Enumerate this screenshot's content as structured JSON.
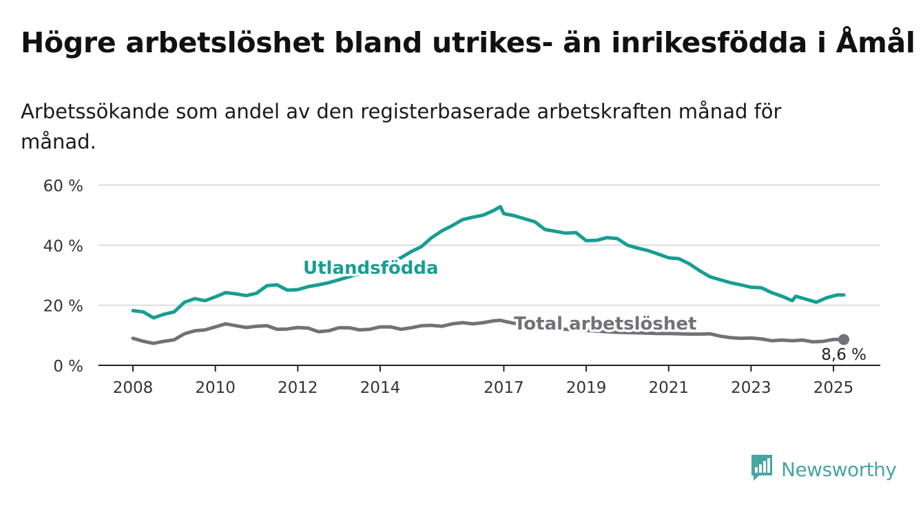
{
  "header": {
    "title": "Högre arbetslöshet bland utrikes- än inrikesfödda i Åmål",
    "subtitle": "Arbetssökande som andel av den registerbaserade arbetskraften månad för månad."
  },
  "brand": {
    "name": "Newsworthy",
    "icon": "newsworthy-logo-icon",
    "color": "#46a6a0"
  },
  "chart_data": {
    "type": "line",
    "y_ticks": [
      "0 %",
      "20 %",
      "40 %",
      "60 %"
    ],
    "ylim": [
      0,
      60
    ],
    "x_ticks": [
      "2008",
      "2010",
      "2012",
      "2014",
      "2017",
      "2019",
      "2021",
      "2023",
      "2025"
    ],
    "xlim": [
      "2008-01",
      "2025-04"
    ],
    "grid": true,
    "series": [
      {
        "name": "Utlandsfödda",
        "color": "#179e92",
        "points": [
          [
            "2008-01",
            18.2
          ],
          [
            "2008-04",
            17.8
          ],
          [
            "2008-07",
            15.8
          ],
          [
            "2008-10",
            17.0
          ],
          [
            "2009-01",
            17.8
          ],
          [
            "2009-04",
            21.0
          ],
          [
            "2009-07",
            22.2
          ],
          [
            "2009-10",
            21.5
          ],
          [
            "2010-01",
            22.8
          ],
          [
            "2010-04",
            24.2
          ],
          [
            "2010-07",
            23.8
          ],
          [
            "2010-10",
            23.2
          ],
          [
            "2011-01",
            24.0
          ],
          [
            "2011-04",
            26.5
          ],
          [
            "2011-07",
            26.8
          ],
          [
            "2011-10",
            25.0
          ],
          [
            "2012-01",
            25.2
          ],
          [
            "2012-04",
            26.2
          ],
          [
            "2012-07",
            26.8
          ],
          [
            "2012-10",
            27.5
          ],
          [
            "2013-01",
            28.5
          ],
          [
            "2013-04",
            29.5
          ],
          [
            "2013-07",
            30.5
          ],
          [
            "2013-10",
            31.8
          ],
          [
            "2014-01",
            33.0
          ],
          [
            "2014-04",
            34.5
          ],
          [
            "2014-07",
            35.8
          ],
          [
            "2014-10",
            37.8
          ],
          [
            "2015-01",
            39.5
          ],
          [
            "2015-04",
            42.5
          ],
          [
            "2015-07",
            44.8
          ],
          [
            "2015-10",
            46.5
          ],
          [
            "2016-01",
            48.5
          ],
          [
            "2016-04",
            49.3
          ],
          [
            "2016-07",
            50.0
          ],
          [
            "2016-10",
            51.5
          ],
          [
            "2016-12",
            52.8
          ],
          [
            "2017-01",
            50.5
          ],
          [
            "2017-04",
            49.8
          ],
          [
            "2017-07",
            48.8
          ],
          [
            "2017-10",
            47.8
          ],
          [
            "2018-01",
            45.2
          ],
          [
            "2018-04",
            44.6
          ],
          [
            "2018-07",
            44.0
          ],
          [
            "2018-10",
            44.2
          ],
          [
            "2019-01",
            41.5
          ],
          [
            "2019-04",
            41.6
          ],
          [
            "2019-07",
            42.5
          ],
          [
            "2019-10",
            42.2
          ],
          [
            "2020-01",
            40.0
          ],
          [
            "2020-04",
            39.0
          ],
          [
            "2020-07",
            38.2
          ],
          [
            "2020-10",
            37.0
          ],
          [
            "2021-01",
            35.8
          ],
          [
            "2021-04",
            35.5
          ],
          [
            "2021-07",
            33.8
          ],
          [
            "2021-10",
            31.5
          ],
          [
            "2022-01",
            29.5
          ],
          [
            "2022-04",
            28.5
          ],
          [
            "2022-07",
            27.5
          ],
          [
            "2022-10",
            26.8
          ],
          [
            "2023-01",
            26.0
          ],
          [
            "2023-04",
            25.8
          ],
          [
            "2023-07",
            24.2
          ],
          [
            "2023-10",
            23.0
          ],
          [
            "2024-01",
            21.5
          ],
          [
            "2024-02",
            23.0
          ],
          [
            "2024-05",
            22.0
          ],
          [
            "2024-08",
            21.0
          ],
          [
            "2024-11",
            22.5
          ],
          [
            "2025-02",
            23.4
          ],
          [
            "2025-04",
            23.4
          ]
        ]
      },
      {
        "name": "Total arbetslöshet",
        "color": "#727178",
        "points": [
          [
            "2008-01",
            9.0
          ],
          [
            "2008-04",
            8.0
          ],
          [
            "2008-07",
            7.3
          ],
          [
            "2008-10",
            8.0
          ],
          [
            "2009-01",
            8.5
          ],
          [
            "2009-04",
            10.5
          ],
          [
            "2009-07",
            11.5
          ],
          [
            "2009-10",
            11.8
          ],
          [
            "2010-01",
            12.8
          ],
          [
            "2010-04",
            13.8
          ],
          [
            "2010-07",
            13.2
          ],
          [
            "2010-10",
            12.6
          ],
          [
            "2011-01",
            13.0
          ],
          [
            "2011-04",
            13.2
          ],
          [
            "2011-07",
            12.0
          ],
          [
            "2011-10",
            12.1
          ],
          [
            "2012-01",
            12.6
          ],
          [
            "2012-04",
            12.4
          ],
          [
            "2012-07",
            11.2
          ],
          [
            "2012-10",
            11.5
          ],
          [
            "2013-01",
            12.5
          ],
          [
            "2013-04",
            12.5
          ],
          [
            "2013-07",
            11.8
          ],
          [
            "2013-10",
            12.0
          ],
          [
            "2014-01",
            12.8
          ],
          [
            "2014-04",
            12.8
          ],
          [
            "2014-07",
            12.0
          ],
          [
            "2014-10",
            12.5
          ],
          [
            "2015-01",
            13.2
          ],
          [
            "2015-04",
            13.3
          ],
          [
            "2015-07",
            13.0
          ],
          [
            "2015-10",
            13.8
          ],
          [
            "2016-01",
            14.2
          ],
          [
            "2016-04",
            13.8
          ],
          [
            "2016-07",
            14.2
          ],
          [
            "2016-10",
            14.8
          ],
          [
            "2016-12",
            15.0
          ],
          [
            "2017-01",
            14.7
          ],
          [
            "2017-04",
            14.0
          ],
          [
            "2017-07",
            13.5
          ],
          [
            "2017-10",
            13.0
          ],
          [
            "2018-01",
            12.5
          ],
          [
            "2018-04",
            12.2
          ],
          [
            "2018-07",
            12.0
          ],
          [
            "2018-10",
            11.8
          ],
          [
            "2019-01",
            11.6
          ],
          [
            "2019-04",
            11.4
          ],
          [
            "2019-07",
            11.2
          ],
          [
            "2019-10",
            11.0
          ],
          [
            "2020-01",
            10.9
          ],
          [
            "2020-04",
            10.8
          ],
          [
            "2020-07",
            10.7
          ],
          [
            "2020-10",
            10.6
          ],
          [
            "2021-01",
            10.6
          ],
          [
            "2021-04",
            10.5
          ],
          [
            "2021-07",
            10.4
          ],
          [
            "2021-10",
            10.4
          ],
          [
            "2022-01",
            10.5
          ],
          [
            "2022-04",
            9.7
          ],
          [
            "2022-07",
            9.2
          ],
          [
            "2022-10",
            9.0
          ],
          [
            "2023-01",
            9.1
          ],
          [
            "2023-04",
            8.8
          ],
          [
            "2023-07",
            8.2
          ],
          [
            "2023-10",
            8.4
          ],
          [
            "2024-01",
            8.2
          ],
          [
            "2024-04",
            8.4
          ],
          [
            "2024-07",
            7.8
          ],
          [
            "2024-10",
            8.0
          ],
          [
            "2025-01",
            8.6
          ],
          [
            "2025-04",
            8.6
          ]
        ]
      }
    ],
    "annotations": [
      {
        "text": "Utlandsfödda",
        "series": 0
      },
      {
        "text": "Total arbetslöshet",
        "series": 1
      },
      {
        "text": "8,6 %",
        "series": 1,
        "point": "last"
      }
    ]
  }
}
